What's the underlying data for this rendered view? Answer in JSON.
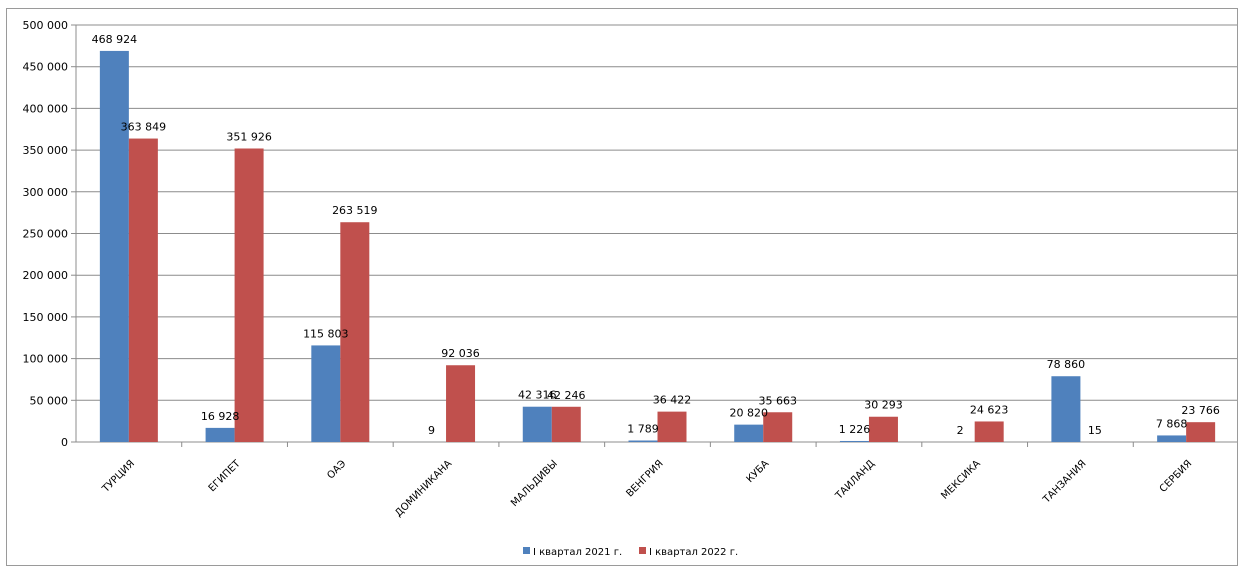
{
  "chart_data": {
    "type": "bar",
    "title": "",
    "xlabel": "",
    "ylabel": "",
    "ylim": [
      0,
      500000
    ],
    "yticks": [
      0,
      50000,
      100000,
      150000,
      200000,
      250000,
      300000,
      350000,
      400000,
      450000,
      500000
    ],
    "ytick_labels": [
      "0",
      "50 000",
      "100 000",
      "150 000",
      "200 000",
      "250 000",
      "300 000",
      "350 000",
      "400 000",
      "450 000",
      "500 000"
    ],
    "grid": true,
    "legend_position": "bottom",
    "categories": [
      "ТУРЦИЯ",
      "ЕГИПЕТ",
      "ОАЭ",
      "ДОМИНИКАНА",
      "МАЛЬДИВЫ",
      "ВЕНГРИЯ",
      "КУБА",
      "ТАИЛАНД",
      "МЕКСИКА",
      "ТАНЗАНИЯ",
      "СЕРБИЯ"
    ],
    "series": [
      {
        "name": "I квартал 2021 г.",
        "color": "#4f81bd",
        "values": [
          468924,
          16928,
          115803,
          9,
          42316,
          1789,
          20820,
          1226,
          2,
          78860,
          7868
        ],
        "labels": [
          "468 924",
          "16 928",
          "115 803",
          "9",
          "42 316",
          "1 789",
          "20 820",
          "1 226",
          "2",
          "78 860",
          "7 868"
        ]
      },
      {
        "name": "I квартал 2022 г.",
        "color": "#c0504d",
        "values": [
          363849,
          351926,
          263519,
          92036,
          42246,
          36422,
          35663,
          30293,
          24623,
          15,
          23766
        ],
        "labels": [
          "363 849",
          "351 926",
          "263 519",
          "92 036",
          "42 246",
          "36 422",
          "35 663",
          "30 293",
          "24 623",
          "15",
          "23 766"
        ]
      }
    ]
  }
}
